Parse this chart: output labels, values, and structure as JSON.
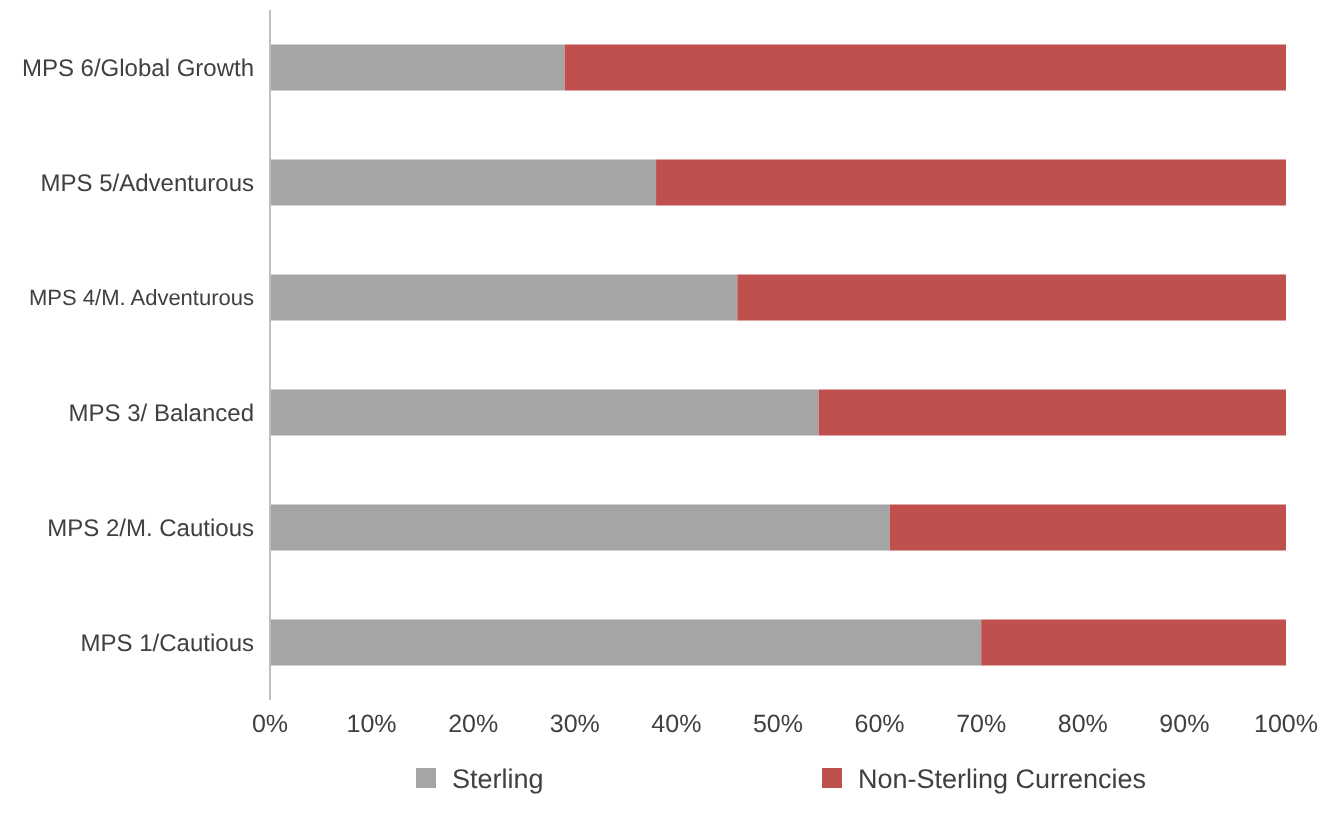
{
  "chart_data": {
    "type": "bar",
    "orientation": "horizontal",
    "stacked": true,
    "categories": [
      "MPS 6/Global Growth",
      "MPS 5/Adventurous",
      "MPS 4/M. Adventurous",
      "MPS 3/ Balanced",
      "MPS 2/M. Cautious",
      "MPS 1/Cautious"
    ],
    "series": [
      {
        "name": "Sterling",
        "color": "#a5a5a5",
        "values": [
          29,
          38,
          46,
          54,
          61,
          70
        ]
      },
      {
        "name": "Non-Sterling Currencies",
        "color": "#c0504d",
        "values": [
          71,
          62,
          54,
          46,
          39,
          30
        ]
      }
    ],
    "xlim": [
      0,
      100
    ],
    "xticks": [
      {
        "value": 0,
        "label": "0%"
      },
      {
        "value": 10,
        "label": "10%"
      },
      {
        "value": 20,
        "label": "20%"
      },
      {
        "value": 30,
        "label": "30%"
      },
      {
        "value": 40,
        "label": "40%"
      },
      {
        "value": 50,
        "label": "50%"
      },
      {
        "value": 60,
        "label": "60%"
      },
      {
        "value": 70,
        "label": "70%"
      },
      {
        "value": 80,
        "label": "80%"
      },
      {
        "value": 90,
        "label": "90%"
      },
      {
        "value": 100,
        "label": "100%"
      }
    ],
    "grid": false,
    "legend": "bottom"
  }
}
